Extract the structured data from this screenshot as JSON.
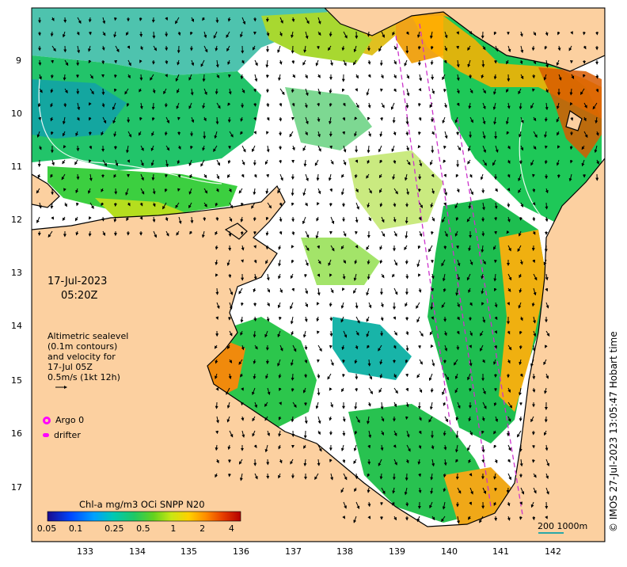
{
  "map": {
    "date": "17-Jul-2023",
    "time": "05:20Z",
    "lat_ticks": [
      "9",
      "10",
      "11",
      "12",
      "13",
      "14",
      "15",
      "16",
      "17"
    ],
    "lon_ticks": [
      "133",
      "134",
      "135",
      "136",
      "137",
      "138",
      "139",
      "140",
      "141",
      "142"
    ],
    "altimetry_legend": [
      "Altimetric sealevel",
      "(0.1m contours)",
      "and velocity for",
      "17-Jul 05Z",
      "0.5m/s (1kt 12h)"
    ],
    "argo_label": "Argo 0",
    "drifter_label": "drifter",
    "scale_label": "200  1000m",
    "credit": "© IMOS 27-Jul-2023 13:05:47 Hobart time",
    "colors": {
      "land": "#fcd0a0",
      "ocean_missing": "#ffffff",
      "argo": "#ff00ff",
      "track": "#cc33cc"
    }
  },
  "colorbar": {
    "title": "Chl-a mg/m3 OCi SNPP N20",
    "tick_labels": [
      "0.05",
      "0.1",
      "0.25",
      "0.5",
      "1",
      "2",
      "4"
    ],
    "tick_values": [
      0.05,
      0.1,
      0.25,
      0.5,
      1,
      2,
      4
    ],
    "range": [
      0.05,
      5
    ],
    "colors": [
      "#1a0a8c",
      "#0047ff",
      "#00a0ff",
      "#00c8b4",
      "#1ec864",
      "#64d21e",
      "#c8e614",
      "#ffd200",
      "#ff8c00",
      "#e63c00",
      "#b40000"
    ]
  }
}
